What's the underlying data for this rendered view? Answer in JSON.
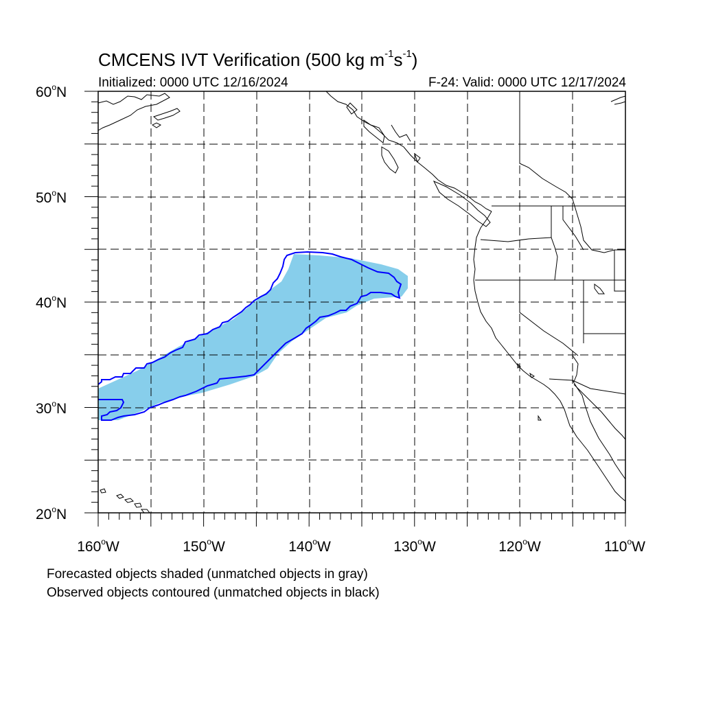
{
  "title": {
    "text": "CMCENS IVT Verification (500 kg m",
    "sup1": "-1",
    "mid": "s",
    "sup2": "-1",
    "close": ")"
  },
  "init_label": "Initialized: 0000 UTC 12/16/2024",
  "valid_label": "F-24: Valid: 0000 UTC 12/17/2024",
  "map": {
    "lon_range": [
      -160,
      -110
    ],
    "lat_range": [
      20,
      60
    ],
    "lat_labels": [
      {
        "value": "60",
        "suffix": "N"
      },
      {
        "value": "50",
        "suffix": "N"
      },
      {
        "value": "40",
        "suffix": "N"
      },
      {
        "value": "30",
        "suffix": "N"
      },
      {
        "value": "20",
        "suffix": "N"
      }
    ],
    "lon_labels": [
      {
        "value": "160",
        "suffix": "W"
      },
      {
        "value": "150",
        "suffix": "W"
      },
      {
        "value": "140",
        "suffix": "W"
      },
      {
        "value": "130",
        "suffix": "W"
      },
      {
        "value": "120",
        "suffix": "W"
      },
      {
        "value": "110",
        "suffix": "W"
      }
    ],
    "degree_symbol": "o",
    "forecast_color": "#87ceeb",
    "observed_color": "#0000ff",
    "coast_color": "#000000"
  },
  "captions": {
    "line1": "Forecasted objects shaded (unmatched objects in gray)",
    "line2": "Observed objects contoured (unmatched objects in black)"
  }
}
